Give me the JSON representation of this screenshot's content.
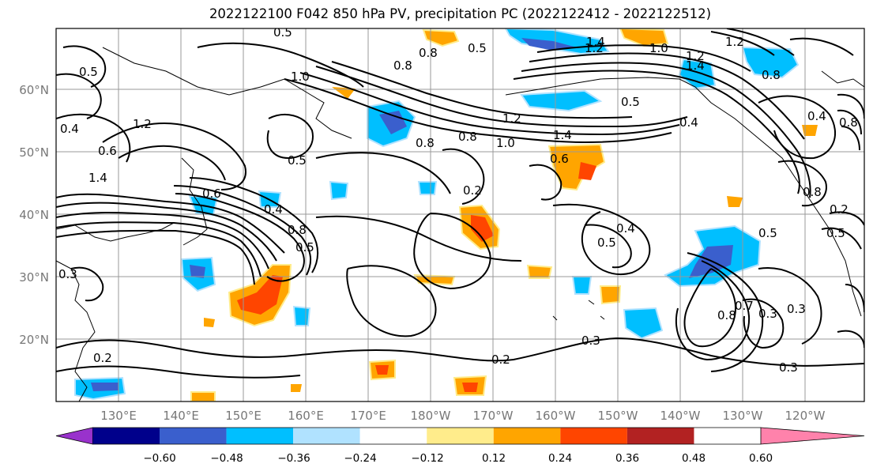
{
  "title": "2022122100 F042 850 hPa PV, precipitation PC (2022122412 - 2022122512)",
  "lon_ticks": [
    "130°E",
    "140°E",
    "150°E",
    "160°E",
    "170°E",
    "180°W",
    "170°W",
    "160°W",
    "150°W",
    "140°W",
    "130°W",
    "120°W"
  ],
  "lat_ticks": [
    "60°N",
    "50°N",
    "40°N",
    "30°N",
    "20°N"
  ],
  "colorbar": {
    "colors": [
      "#9932cc",
      "#00008b",
      "#3a5fcd",
      "#00bfff",
      "#b0e2ff",
      "#ffffff",
      "#ffec8b",
      "#ffa500",
      "#ff4500",
      "#b22222",
      "#ff82ab"
    ],
    "tick_labels": [
      "−0.60",
      "−0.48",
      "−0.36",
      "−0.24",
      "−0.12",
      "0.12",
      "0.24",
      "0.36",
      "0.48",
      "0.60"
    ]
  },
  "contour_labels": [
    "0.5",
    "1.4",
    "1.2",
    "0.8",
    "0.5",
    "1.0",
    "0.8",
    "1.0",
    "1.2",
    "0.8",
    "1.2",
    "1.4",
    "0.5",
    "1.2",
    "1.4",
    "0.8",
    "0.4",
    "0.5",
    "1.0",
    "0.8",
    "0.6",
    "0.2",
    "0.4",
    "0.5",
    "0.6",
    "0.4",
    "1.2",
    "0.8",
    "0.5",
    "0.5",
    "0.5",
    "0.8",
    "0.7",
    "0.3",
    "0.3",
    "0.2",
    "0.3",
    "0.2",
    "0.3",
    "0.3",
    "0.4",
    "0.5",
    "0.2",
    "0.4",
    "0.8",
    "1.4",
    "0.6",
    "0.8"
  ]
}
